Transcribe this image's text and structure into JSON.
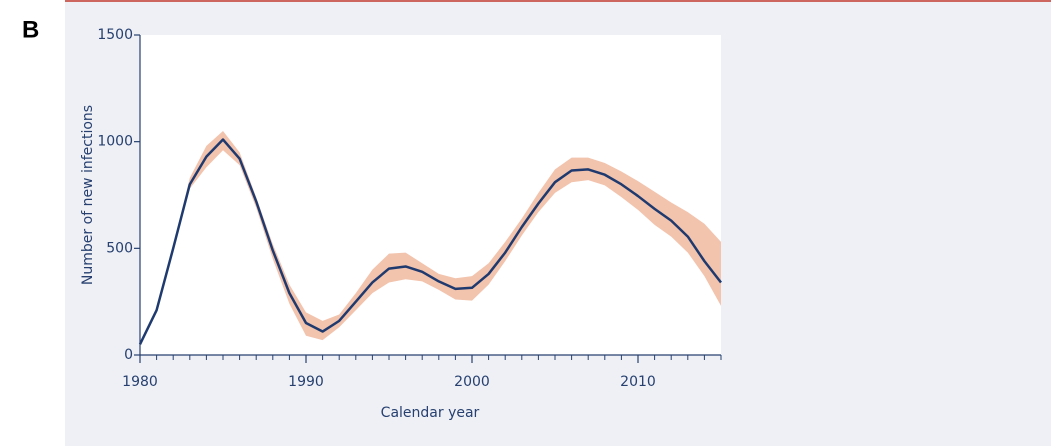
{
  "panel_label": "B",
  "chart_data": {
    "type": "line",
    "xlabel": "Calendar year",
    "ylabel": "Number of new infections",
    "x": [
      1980,
      1981,
      1982,
      1983,
      1984,
      1985,
      1986,
      1987,
      1988,
      1989,
      1990,
      1991,
      1992,
      1993,
      1994,
      1995,
      1996,
      1997,
      1998,
      1999,
      2000,
      2001,
      2002,
      2003,
      2004,
      2005,
      2006,
      2007,
      2008,
      2009,
      2010,
      2011,
      2012,
      2013,
      2014,
      2015
    ],
    "series": [
      {
        "color": "#1f3a6e",
        "values": [
          50,
          210,
          500,
          800,
          930,
          1010,
          920,
          720,
          490,
          290,
          150,
          110,
          160,
          250,
          340,
          405,
          415,
          390,
          345,
          310,
          315,
          380,
          480,
          600,
          710,
          810,
          865,
          870,
          845,
          800,
          745,
          685,
          630,
          555,
          440,
          340
        ]
      }
    ],
    "band": {
      "color": "#f2c3ad",
      "upper": [
        50,
        210,
        510,
        830,
        980,
        1050,
        950,
        740,
        520,
        330,
        200,
        160,
        190,
        290,
        400,
        475,
        480,
        430,
        380,
        360,
        370,
        430,
        530,
        640,
        760,
        870,
        925,
        925,
        900,
        860,
        815,
        765,
        715,
        670,
        615,
        530
      ],
      "lower": [
        50,
        210,
        490,
        780,
        880,
        960,
        890,
        690,
        450,
        240,
        90,
        70,
        130,
        210,
        290,
        340,
        355,
        345,
        305,
        260,
        255,
        330,
        440,
        560,
        670,
        760,
        810,
        820,
        795,
        740,
        680,
        610,
        555,
        480,
        370,
        230
      ]
    },
    "xlim": [
      1980,
      2015
    ],
    "xticks": [
      1980,
      1990,
      2000,
      2010
    ],
    "xminorticks": [
      1981,
      1982,
      1983,
      1984,
      1985,
      1986,
      1987,
      1988,
      1989,
      1991,
      1992,
      1993,
      1994,
      1995,
      1996,
      1997,
      1998,
      1999,
      2001,
      2002,
      2003,
      2004,
      2005,
      2006,
      2007,
      2008,
      2009,
      2011,
      2012,
      2013,
      2014,
      2015
    ],
    "ylim": [
      0,
      1500
    ],
    "yticks": [
      0,
      500,
      1000,
      1500
    ],
    "grid": false
  }
}
